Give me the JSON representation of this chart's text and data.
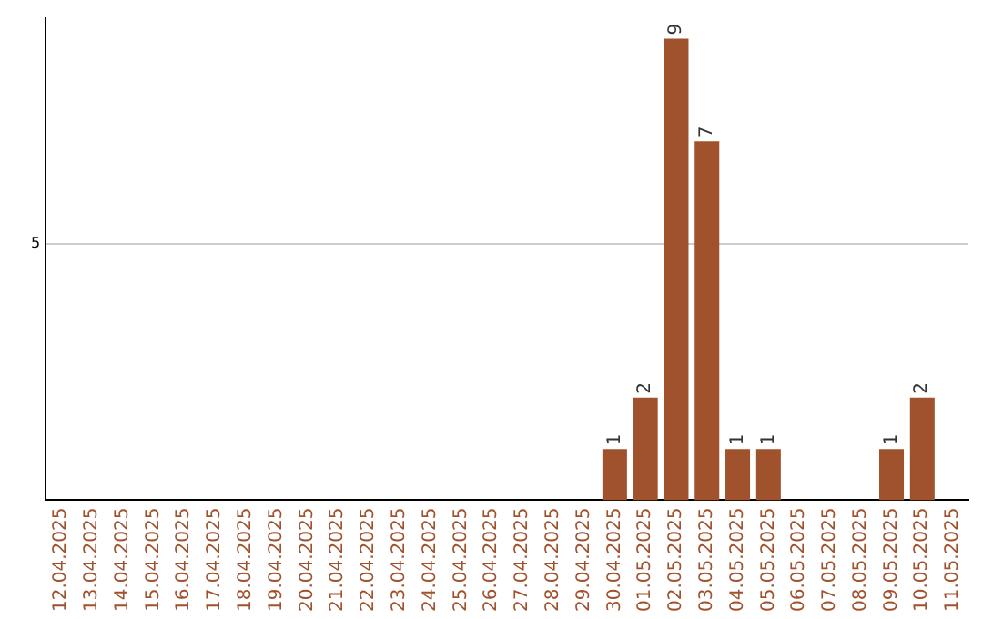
{
  "chart_data": {
    "type": "bar",
    "categories": [
      "12.04.2025",
      "13.04.2025",
      "14.04.2025",
      "15.04.2025",
      "16.04.2025",
      "17.04.2025",
      "18.04.2025",
      "19.04.2025",
      "20.04.2025",
      "21.04.2025",
      "22.04.2025",
      "23.04.2025",
      "24.04.2025",
      "25.04.2025",
      "26.04.2025",
      "27.04.2025",
      "28.04.2025",
      "29.04.2025",
      "30.04.2025",
      "01.05.2025",
      "02.05.2025",
      "03.05.2025",
      "04.05.2025",
      "05.05.2025",
      "06.05.2025",
      "07.05.2025",
      "08.05.2025",
      "09.05.2025",
      "10.05.2025",
      "11.05.2025"
    ],
    "values": [
      null,
      null,
      null,
      null,
      null,
      null,
      null,
      null,
      null,
      null,
      null,
      null,
      null,
      null,
      null,
      null,
      null,
      null,
      1,
      2,
      9,
      7,
      1,
      1,
      null,
      null,
      null,
      1,
      2,
      null
    ],
    "value_labels": [
      null,
      null,
      null,
      null,
      null,
      null,
      null,
      null,
      null,
      null,
      null,
      null,
      null,
      null,
      null,
      null,
      null,
      null,
      "1",
      "2",
      "9",
      "7",
      "1",
      "1",
      null,
      null,
      null,
      "1",
      "2",
      null
    ],
    "color": "#a0522d",
    "ylim": [
      0,
      9.4
    ],
    "yticks": [
      5
    ],
    "grid": "y"
  }
}
